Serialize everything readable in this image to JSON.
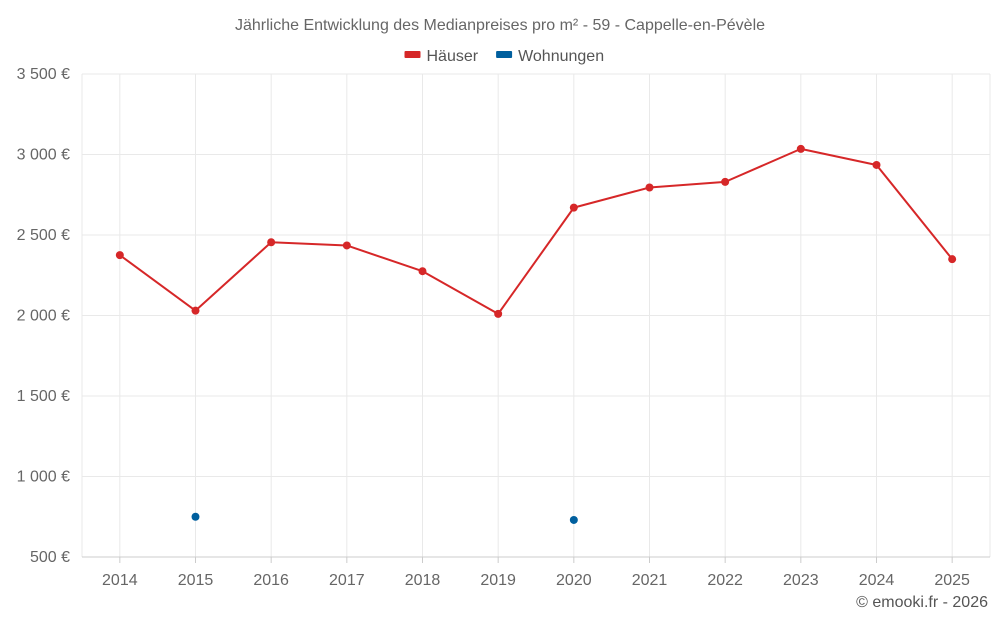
{
  "chart_data": {
    "type": "line",
    "title": "Jährliche Entwicklung des Medianpreises pro m² - 59 - Cappelle-en-Pévèle",
    "categories": [
      "2014",
      "2015",
      "2016",
      "2017",
      "2018",
      "2019",
      "2020",
      "2021",
      "2022",
      "2023",
      "2024",
      "2025"
    ],
    "ylim": [
      500,
      3500
    ],
    "yticks": [
      500,
      1000,
      1500,
      2000,
      2500,
      3000,
      3500
    ],
    "ytick_labels": [
      "500 €",
      "1 000 €",
      "1 500 €",
      "2 000 €",
      "2 500 €",
      "3 000 €",
      "3 500 €"
    ],
    "grid": true,
    "legend_position": "top-center",
    "series": [
      {
        "name": "Häuser",
        "color": "#d62728",
        "line": true,
        "values": [
          2375,
          2030,
          2455,
          2435,
          2275,
          2010,
          2670,
          2795,
          2830,
          3035,
          2935,
          2350
        ]
      },
      {
        "name": "Wohnungen",
        "color": "#005f9e",
        "line": false,
        "values": [
          null,
          750,
          null,
          null,
          null,
          null,
          730,
          null,
          null,
          null,
          null,
          null
        ]
      }
    ]
  },
  "credit": "© emooki.fr - 2026"
}
